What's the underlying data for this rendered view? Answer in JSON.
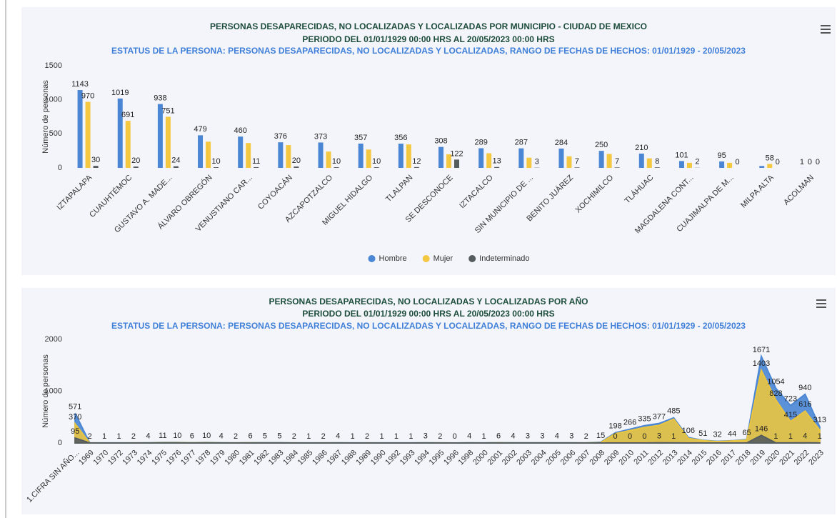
{
  "chart_data": [
    {
      "type": "bar",
      "title": [
        "PERSONAS DESAPARECIDAS, NO LOCALIZADAS Y LOCALIZADAS POR MUNICIPIO - CIUDAD DE MEXICO",
        "PERIODO DEL 01/01/1929 00:00 HRS AL 20/05/2023 00:00 HRS"
      ],
      "subtitle": "ESTATUS DE LA PERSONA: PERSONAS DESAPARECIDAS, NO LOCALIZADAS Y LOCALIZADAS, RANGO DE FECHAS DE HECHOS: 01/01/1929 - 20/05/2023",
      "y_label": "Número de personas",
      "categories": [
        "IZTAPALAPA",
        "CUAUHTÉMOC",
        "GUSTAVO A. MADE...",
        "ÁLVARO OBREGÓN",
        "VENUSTIANO CAR...",
        "COYOACÁN",
        "AZCAPOTZALCO",
        "MIGUEL HIDALGO",
        "TLALPAN",
        "SE DESCONOCE",
        "IZTACALCO",
        "SIN MUNICIPIO DE ...",
        "BENITO JUÁREZ",
        "XOCHIMILCO",
        "TLÁHUAC",
        "MAGDALENA CONT...",
        "CUAJIMALPA DE M...",
        "MILPA ALTA",
        "ACOLMAN"
      ],
      "series": [
        {
          "name": "Hombre",
          "color": "#4a86d4",
          "values": [
            1143,
            1019,
            938,
            479,
            460,
            376,
            373,
            357,
            356,
            308,
            289,
            287,
            284,
            250,
            210,
            101,
            95,
            28,
            1
          ],
          "value_labels": [
            "1143",
            "1019",
            "938",
            "479",
            "460",
            "376",
            "373",
            "357",
            "356",
            "308",
            "289",
            "287",
            "284",
            "250",
            "210",
            "101",
            "95",
            null,
            "1"
          ]
        },
        {
          "name": "Mujer",
          "color": "#f5c842",
          "values": [
            970,
            691,
            751,
            385,
            365,
            335,
            240,
            270,
            345,
            200,
            215,
            150,
            170,
            205,
            140,
            75,
            75,
            58,
            0
          ],
          "value_labels": [
            "970",
            "691",
            "751",
            null,
            null,
            null,
            null,
            null,
            null,
            null,
            null,
            null,
            null,
            null,
            null,
            null,
            null,
            "58",
            "0"
          ]
        },
        {
          "name": "Indeterminado",
          "color": "#555c5e",
          "values": [
            30,
            20,
            24,
            10,
            11,
            20,
            10,
            10,
            12,
            122,
            13,
            3,
            7,
            7,
            8,
            2,
            0,
            0,
            0
          ],
          "value_labels": [
            "30",
            "20",
            "24",
            "10",
            "11",
            "20",
            "10",
            "10",
            "12",
            "122",
            "13",
            "3",
            "7",
            "7",
            "8",
            "2",
            "0",
            "0",
            "0"
          ]
        }
      ],
      "ylim": [
        0,
        1500
      ],
      "yticks": [
        0,
        500,
        1000,
        1500
      ],
      "legend": "bottom"
    },
    {
      "type": "area",
      "title": [
        "PERSONAS DESAPARECIDAS, NO LOCALIZADAS Y LOCALIZADAS POR AÑO",
        "PERIODO DEL 01/01/1929 00:00 HRS AL 20/05/2023 00:00 HRS"
      ],
      "subtitle": "ESTATUS DE LA PERSONA: PERSONAS DESAPARECIDAS, NO LOCALIZADAS Y LOCALIZADAS, RANGO DE FECHAS DE HECHOS: 01/01/1929 - 20/05/2023",
      "y_label": "Número de personas",
      "categories": [
        "1.CIFRA SIN AÑO...",
        "1969",
        "1970",
        "1972",
        "1973",
        "1974",
        "1975",
        "1976",
        "1977",
        "1978",
        "1979",
        "1980",
        "1981",
        "1982",
        "1983",
        "1984",
        "1985",
        "1986",
        "1987",
        "1988",
        "1989",
        "1990",
        "1992",
        "1993",
        "1994",
        "1995",
        "1996",
        "1998",
        "2000",
        "2001",
        "2002",
        "2003",
        "2004",
        "2005",
        "2006",
        "2007",
        "2008",
        "2009",
        "2010",
        "2011",
        "2012",
        "2013",
        "2014",
        "2015",
        "2016",
        "2017",
        "2018",
        "2019",
        "2020",
        "2021",
        "2022",
        "2023"
      ],
      "series": [
        {
          "color": "#4a86d4",
          "values": [
            571,
            2,
            1,
            1,
            2,
            4,
            11,
            10,
            6,
            10,
            4,
            2,
            6,
            5,
            5,
            2,
            1,
            2,
            4,
            1,
            2,
            1,
            1,
            1,
            3,
            2,
            0,
            4,
            1,
            6,
            4,
            3,
            3,
            4,
            3,
            2,
            15,
            198,
            266,
            335,
            377,
            485,
            106,
            51,
            32,
            44,
            65,
            1671,
            1054,
            723,
            940,
            313
          ],
          "value_labels": [
            "571",
            "2",
            "1",
            "1",
            "2",
            "4",
            "11",
            "10",
            "6",
            "10",
            "4",
            "2",
            "6",
            "5",
            "5",
            "2",
            "1",
            "2",
            "4",
            "1",
            "2",
            "1",
            "1",
            "1",
            "3",
            "2",
            "0",
            "4",
            "1",
            "6",
            "4",
            "3",
            "3",
            "4",
            "3",
            "2",
            "15",
            "198",
            "266",
            "335",
            "377",
            "485",
            "106",
            "51",
            "32",
            "44",
            "65",
            "1671",
            "1054",
            "723",
            "940",
            "313"
          ]
        },
        {
          "color": "#e9c440",
          "values": [
            370,
            1,
            0,
            0,
            1,
            2,
            5,
            5,
            3,
            5,
            2,
            1,
            3,
            2,
            2,
            1,
            0,
            1,
            2,
            0,
            1,
            0,
            0,
            0,
            1,
            1,
            0,
            2,
            0,
            3,
            2,
            1,
            1,
            2,
            1,
            1,
            7,
            180,
            240,
            300,
            340,
            460,
            90,
            45,
            28,
            40,
            55,
            1403,
            828,
            415,
            616,
            250
          ],
          "value_labels": [
            "370",
            null,
            null,
            null,
            null,
            null,
            null,
            null,
            null,
            null,
            null,
            null,
            null,
            null,
            null,
            null,
            null,
            null,
            null,
            null,
            null,
            null,
            null,
            null,
            null,
            null,
            null,
            null,
            null,
            null,
            null,
            null,
            null,
            null,
            null,
            null,
            null,
            null,
            null,
            null,
            null,
            null,
            null,
            null,
            null,
            null,
            null,
            "1403",
            "828",
            "415",
            "616",
            null
          ]
        },
        {
          "color": "#555c5e",
          "values": [
            95,
            0,
            0,
            0,
            0,
            0,
            0,
            0,
            0,
            0,
            0,
            0,
            0,
            0,
            0,
            0,
            0,
            0,
            0,
            0,
            0,
            0,
            0,
            0,
            0,
            0,
            0,
            0,
            0,
            0,
            0,
            0,
            0,
            0,
            0,
            0,
            0,
            0,
            0,
            0,
            3,
            1,
            0,
            0,
            0,
            0,
            0,
            146,
            1,
            1,
            4,
            1
          ],
          "value_labels": [
            "95",
            null,
            null,
            null,
            null,
            null,
            null,
            null,
            null,
            null,
            null,
            null,
            null,
            null,
            null,
            null,
            null,
            null,
            null,
            null,
            null,
            null,
            null,
            null,
            null,
            null,
            null,
            null,
            null,
            null,
            null,
            null,
            null,
            null,
            null,
            null,
            null,
            "0",
            "0",
            "0",
            "3",
            "1",
            null,
            null,
            null,
            null,
            null,
            "146",
            "1",
            "1",
            "4",
            "1"
          ]
        }
      ],
      "ylim": [
        0,
        2000
      ],
      "yticks": [
        0,
        1000,
        2000
      ]
    }
  ]
}
